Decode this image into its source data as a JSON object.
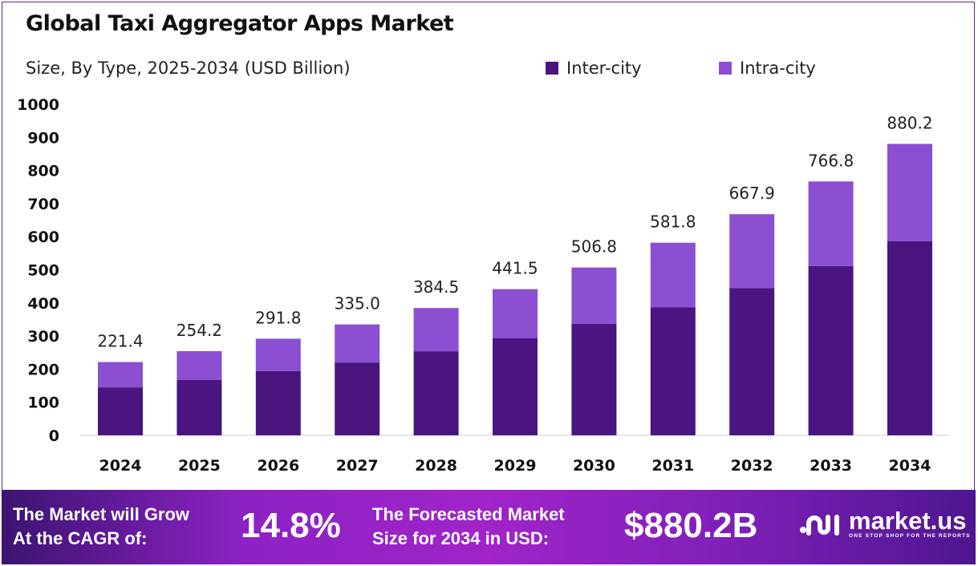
{
  "chart_data": {
    "type": "bar",
    "stacked": true,
    "title": "Global Taxi Aggregator Apps Market",
    "subtitle": "Size, By Type, 2025-2034 (USD Billion)",
    "categories": [
      "2024",
      "2025",
      "2026",
      "2027",
      "2028",
      "2029",
      "2030",
      "2031",
      "2032",
      "2033",
      "2034"
    ],
    "series": [
      {
        "name": "Inter-city",
        "color": "#4b1580",
        "values": [
          145,
          167,
          194,
          220,
          254,
          293,
          337,
          387,
          445,
          511,
          586
        ]
      },
      {
        "name": "Intra-city",
        "color": "#8c4fd2",
        "values": [
          76.4,
          87.2,
          97.8,
          115.0,
          130.5,
          148.5,
          169.8,
          194.8,
          222.9,
          255.8,
          294.2
        ]
      }
    ],
    "totals": [
      "221.4",
      "254.2",
      "291.8",
      "335.0",
      "384.5",
      "441.5",
      "506.8",
      "581.8",
      "667.9",
      "766.8",
      "880.2"
    ],
    "ylim": [
      0,
      1000
    ],
    "yticks": [
      0,
      100,
      200,
      300,
      400,
      500,
      600,
      700,
      800,
      900,
      1000
    ],
    "grid": false,
    "legend": "top-right"
  },
  "footer": {
    "cagr_text_1": "The Market will Grow",
    "cagr_text_2": "At the CAGR of:",
    "cagr_value": "14.8%",
    "forecast_text_1": "The Forecasted Market",
    "forecast_text_2": "Size for 2034 in USD:",
    "forecast_value": "$880.2B",
    "logo_name": "market.us",
    "logo_tagline": "ONE STOP SHOP FOR THE REPORTS"
  }
}
